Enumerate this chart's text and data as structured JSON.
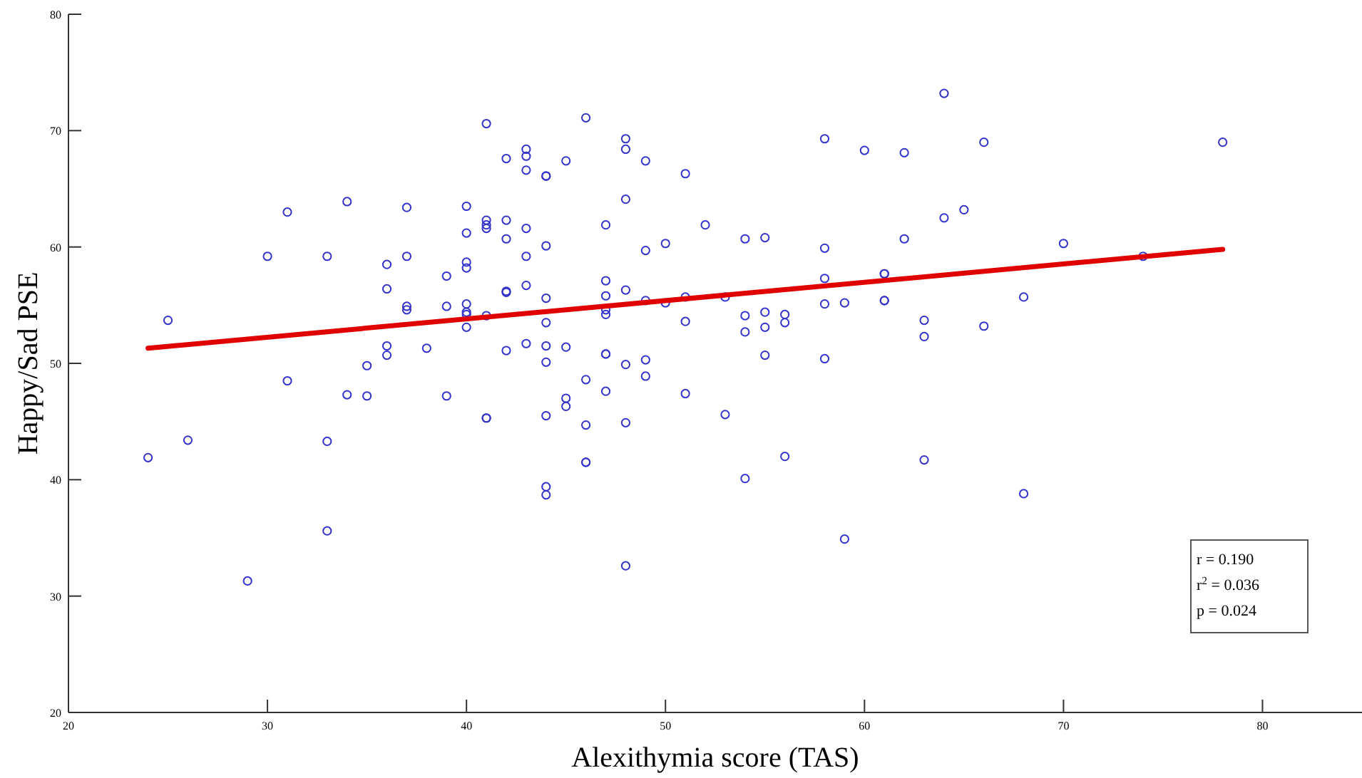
{
  "chart_data": {
    "type": "scatter",
    "xlabel": "Alexithymia score (TAS)",
    "ylabel": "Happy/Sad PSE",
    "xlim": [
      20,
      85
    ],
    "ylim": [
      20,
      80
    ],
    "xticks": [
      20,
      30,
      40,
      50,
      60,
      70,
      80
    ],
    "yticks": [
      20,
      30,
      40,
      50,
      60,
      70,
      80
    ],
    "grid": false,
    "marker": "circle",
    "annotations": [
      "r = 0.190",
      "r$^{2}$ = 0.036",
      "p = 0.024"
    ],
    "series": [
      {
        "color": "#3333cc",
        "x": [
          24,
          25,
          26,
          29,
          30,
          31,
          31,
          33,
          33,
          33,
          34,
          34,
          35,
          35,
          36,
          36,
          36,
          36,
          37,
          37,
          37,
          37,
          38,
          39,
          39,
          39,
          40,
          40,
          40,
          40,
          40,
          40,
          40,
          40,
          41,
          41,
          41,
          41,
          41,
          41,
          41,
          42,
          42,
          42,
          42,
          42,
          42,
          43,
          43,
          43,
          43,
          43,
          43,
          43,
          44,
          44,
          44,
          44,
          44,
          44,
          44,
          44,
          44,
          44,
          45,
          45,
          45,
          45,
          46,
          46,
          46,
          46,
          46,
          47,
          47,
          47,
          47,
          47,
          47,
          47,
          47,
          48,
          48,
          48,
          48,
          48,
          48,
          48,
          49,
          49,
          49,
          49,
          49,
          50,
          50,
          51,
          51,
          51,
          51,
          52,
          53,
          53,
          54,
          54,
          54,
          54,
          55,
          55,
          55,
          55,
          56,
          56,
          56,
          58,
          58,
          58,
          58,
          58,
          59,
          59,
          60,
          61,
          61,
          61,
          61,
          62,
          62,
          63,
          63,
          63,
          64,
          64,
          65,
          66,
          66,
          68,
          68,
          70,
          74,
          78
        ],
        "values": [
          41.9,
          53.7,
          43.4,
          31.3,
          59.2,
          63.0,
          48.5,
          59.2,
          43.3,
          35.6,
          63.9,
          47.3,
          49.8,
          47.2,
          58.5,
          56.4,
          51.5,
          50.7,
          63.4,
          59.2,
          54.9,
          54.6,
          51.3,
          57.5,
          54.9,
          47.2,
          63.5,
          61.2,
          58.7,
          58.2,
          55.1,
          54.4,
          54.2,
          53.1,
          70.6,
          62.3,
          61.6,
          61.9,
          54.1,
          45.3,
          45.3,
          67.6,
          62.3,
          60.7,
          56.2,
          56.1,
          51.1,
          68.4,
          67.8,
          66.6,
          61.6,
          59.2,
          56.7,
          51.7,
          66.1,
          66.1,
          60.1,
          55.6,
          53.5,
          51.5,
          50.1,
          45.5,
          39.4,
          38.7,
          67.4,
          51.4,
          47.0,
          46.3,
          71.1,
          48.6,
          44.7,
          41.5,
          41.5,
          61.9,
          57.1,
          55.8,
          54.6,
          54.2,
          50.8,
          50.8,
          47.6,
          69.3,
          68.4,
          64.1,
          56.3,
          49.9,
          44.9,
          32.6,
          67.4,
          59.7,
          55.4,
          50.3,
          48.9,
          60.3,
          55.2,
          66.3,
          55.7,
          53.6,
          47.4,
          61.9,
          55.7,
          45.6,
          60.7,
          54.1,
          52.7,
          40.1,
          60.8,
          54.4,
          53.1,
          50.7,
          54.2,
          53.5,
          42.0,
          69.3,
          59.9,
          57.3,
          55.1,
          50.4,
          55.2,
          34.9,
          68.3,
          57.7,
          57.7,
          55.4,
          55.4,
          68.1,
          60.7,
          53.7,
          52.3,
          41.7,
          73.2,
          62.5,
          63.2,
          69.0,
          53.2,
          55.7,
          38.8,
          60.3,
          59.2,
          69.0
        ]
      },
      {
        "type": "line",
        "color": "#e00000",
        "x": [
          24,
          78
        ],
        "values": [
          51.3,
          59.8
        ],
        "marker": "none",
        "line_style": "solid"
      }
    ]
  }
}
